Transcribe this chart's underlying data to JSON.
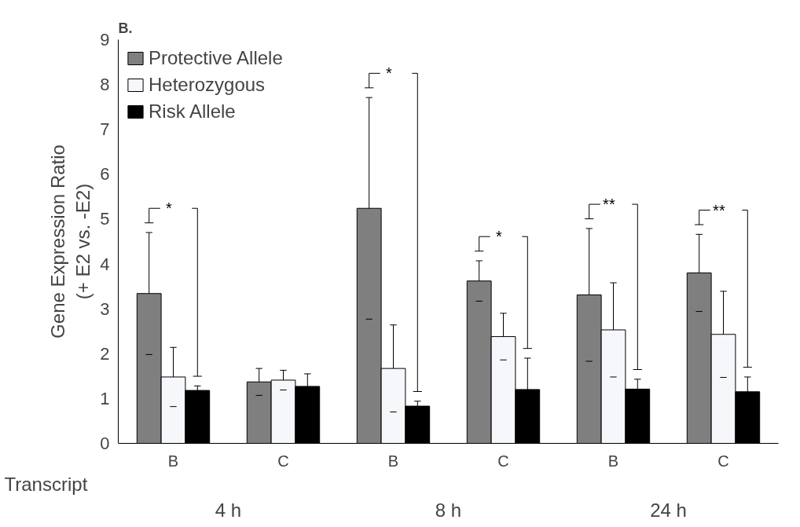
{
  "chart_data": {
    "type": "bar",
    "title": "B.",
    "ylabel": "Gene Expression Ratio\n(+ E2 vs. -E2)",
    "xlabel": "Transcript",
    "categories": [
      "B",
      "C",
      "B",
      "C",
      "B",
      "C"
    ],
    "series": [
      {
        "name": "Protective Allele",
        "color": "#7f7f7f",
        "values": [
          3.34,
          1.37,
          5.24,
          3.62,
          3.31,
          3.8
        ],
        "errors": [
          1.36,
          0.3,
          2.47,
          0.45,
          1.48,
          0.86
        ]
      },
      {
        "name": "Heterozygous",
        "color": "#f5f7fa",
        "values": [
          1.48,
          1.41,
          1.67,
          2.38,
          2.53,
          2.43
        ],
        "errors": [
          0.66,
          0.22,
          0.97,
          0.52,
          1.05,
          0.96
        ]
      },
      {
        "name": "Risk Allele",
        "color": "#000000",
        "values": [
          1.18,
          1.27,
          0.83,
          1.2,
          1.21,
          1.15
        ],
        "errors": [
          0.1,
          0.28,
          0.11,
          0.7,
          0.22,
          0.33
        ]
      }
    ],
    "ylim": [
      0,
      9
    ],
    "yticks": [
      0,
      1,
      2,
      3,
      4,
      5,
      6,
      7,
      8,
      9
    ],
    "grid": false,
    "legend": "top left",
    "annotations": [
      "4 h",
      "8 h",
      "24 h",
      "*",
      "*",
      "*",
      "**",
      "**"
    ]
  }
}
